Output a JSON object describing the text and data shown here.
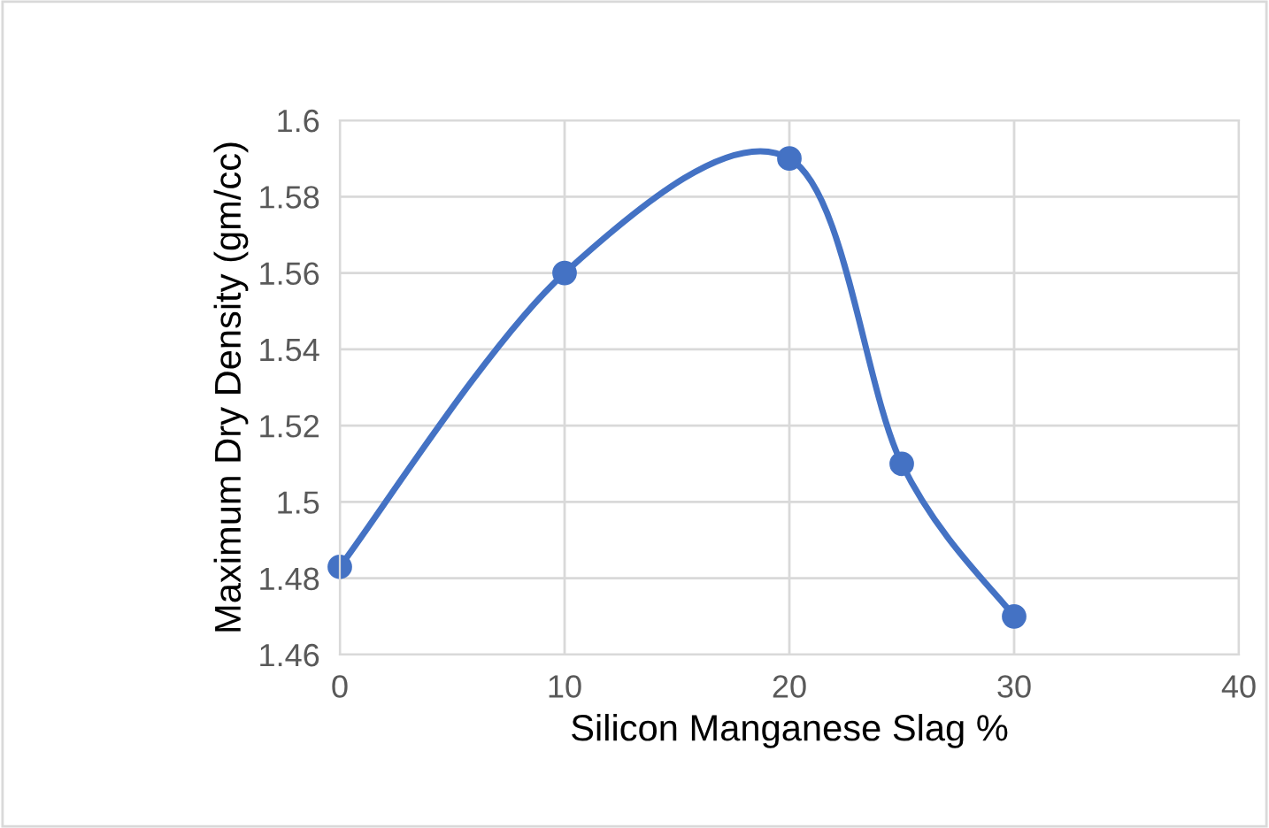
{
  "chart_data": {
    "type": "line",
    "xlabel": "Silicon Manganese Slag %",
    "ylabel": "Maximum Dry Density (gm/cc)",
    "x": [
      0,
      10,
      20,
      25,
      30
    ],
    "series": [
      {
        "color": "#4472c4",
        "values": [
          1.483,
          1.56,
          1.59,
          1.51,
          1.47
        ]
      }
    ],
    "xlim": [
      0,
      40
    ],
    "xticks": [
      0,
      10,
      20,
      30,
      40
    ],
    "ylim": [
      1.46,
      1.6
    ],
    "yticks": [
      1.46,
      1.48,
      1.5,
      1.52,
      1.54,
      1.56,
      1.58,
      1.6
    ],
    "grid": true,
    "marker": "circle",
    "line_style": "solid"
  }
}
